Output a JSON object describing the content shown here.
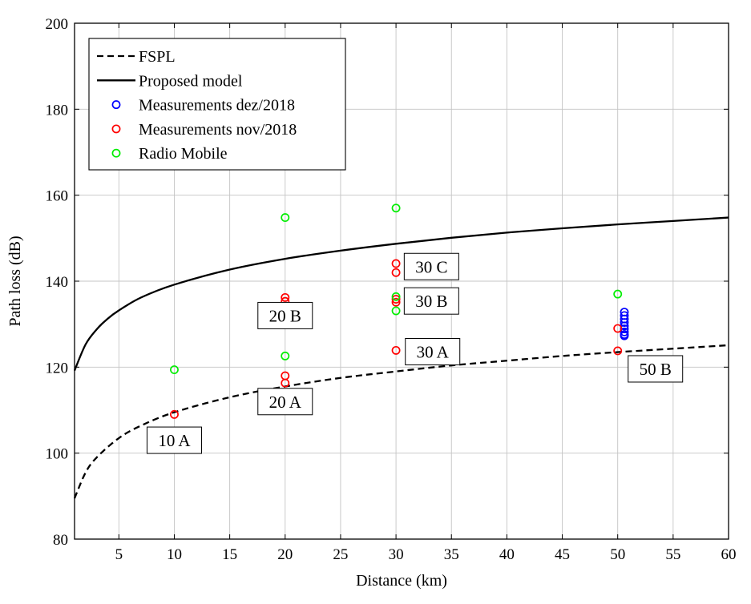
{
  "chart_data": {
    "type": "scatter",
    "xlabel": "Distance (km)",
    "ylabel": "Path loss (dB)",
    "xlim": [
      1,
      60
    ],
    "ylim": [
      80,
      200
    ],
    "x_ticks": [
      5,
      10,
      15,
      20,
      25,
      30,
      35,
      40,
      45,
      50,
      55,
      60
    ],
    "y_ticks": [
      80,
      100,
      120,
      140,
      160,
      180,
      200
    ],
    "grid": true,
    "legend_position": "top-left",
    "series": [
      {
        "name": "FSPL",
        "kind": "line",
        "style": "dashed",
        "color": "#000000",
        "x": [
          1,
          2,
          3,
          5,
          7,
          10,
          15,
          20,
          25,
          30,
          35,
          40,
          45,
          50,
          55,
          60
        ],
        "y": [
          89.5,
          95.5,
          99.0,
          103.5,
          106.4,
          109.5,
          113.0,
          115.5,
          117.5,
          119.0,
          120.4,
          121.5,
          122.6,
          123.5,
          124.3,
          125.1
        ]
      },
      {
        "name": "Proposed model",
        "kind": "line",
        "style": "solid",
        "color": "#000000",
        "x": [
          1,
          2,
          3,
          4,
          5,
          7,
          10,
          15,
          20,
          25,
          30,
          35,
          40,
          45,
          50,
          55,
          60
        ],
        "y": [
          119.2,
          125.3,
          128.8,
          131.3,
          133.2,
          136.2,
          139.2,
          142.7,
          145.2,
          147.1,
          148.7,
          150.1,
          151.3,
          152.3,
          153.2,
          154.0,
          154.8
        ]
      },
      {
        "name": "Measurements dez/2018",
        "kind": "scatter",
        "color": "#0000ff",
        "x": [
          50.6,
          50.6,
          50.6,
          50.6,
          50.6,
          50.6,
          50.6,
          50.6,
          50.6
        ],
        "y": [
          132.8,
          132.0,
          131.2,
          130.4,
          129.6,
          128.9,
          128.2,
          127.6,
          127.3
        ]
      },
      {
        "name": "Measurements nov/2018",
        "kind": "scatter",
        "color": "#ff0000",
        "x": [
          10,
          20,
          20,
          20,
          20,
          30,
          30,
          30,
          30,
          30,
          50,
          50
        ],
        "y": [
          109.0,
          136.2,
          135.3,
          118.0,
          116.3,
          144.1,
          142.0,
          135.8,
          135.1,
          123.9,
          129.0,
          123.8
        ]
      },
      {
        "name": "Radio Mobile",
        "kind": "scatter",
        "color": "#00ee00",
        "x": [
          10,
          20,
          20,
          30,
          30,
          30,
          50
        ],
        "y": [
          119.4,
          154.8,
          122.6,
          157.0,
          136.4,
          133.1,
          137.0
        ]
      }
    ],
    "annotations": [
      {
        "text": "10 A",
        "x": 10,
        "y": 103
      },
      {
        "text": "20 A",
        "x": 20,
        "y": 112
      },
      {
        "text": "20 B",
        "x": 20,
        "y": 132
      },
      {
        "text": "30 A",
        "x": 33.3,
        "y": 123.6
      },
      {
        "text": "30 B",
        "x": 33.2,
        "y": 135.4
      },
      {
        "text": "30 C",
        "x": 33.2,
        "y": 143.4
      },
      {
        "text": "50 B",
        "x": 53.4,
        "y": 119.6
      }
    ]
  }
}
